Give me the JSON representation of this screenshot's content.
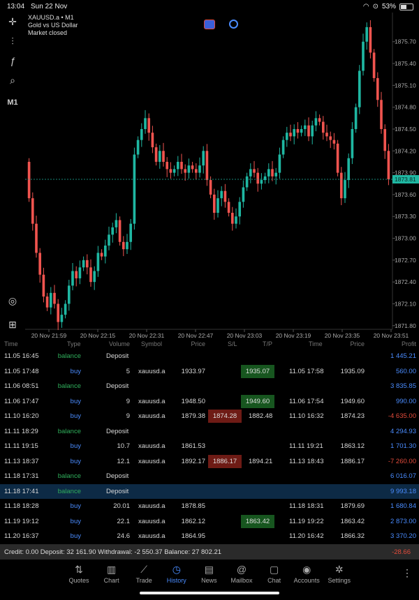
{
  "status": {
    "time": "13:04",
    "date": "Sun 22 Nov",
    "battery": "53%"
  },
  "chart_info": {
    "symbol": "XAUUSD.a • M1",
    "description": "Gold vs US Dollar",
    "market_state": "Market closed"
  },
  "toolbar": {
    "timeframe": "M1"
  },
  "chart_data": {
    "type": "candlestick",
    "ylim": [
      1871.75,
      1876.1
    ],
    "yticks": [
      "1875.70",
      "1875.40",
      "1875.10",
      "1874.80",
      "1874.50",
      "1874.20",
      "1873.90",
      "1873.60",
      "1873.30",
      "1873.00",
      "1872.70",
      "1872.40",
      "1872.10",
      "1871.80"
    ],
    "current_price": "1873.81",
    "xticks": [
      "20 Nov 21:59",
      "20 Nov 22:15",
      "20 Nov 22:31",
      "20 Nov 22:47",
      "20 Nov 23:03",
      "20 Nov 23:19",
      "20 Nov 23:35",
      "20 Nov 23:51"
    ],
    "closes": [
      1873.55,
      1873.2,
      1872.8,
      1872.5,
      1872.2,
      1872.05,
      1872.25,
      1872.1,
      1871.85,
      1871.95,
      1872.1,
      1872.35,
      1872.55,
      1872.45,
      1872.6,
      1872.7,
      1872.6,
      1872.4,
      1872.55,
      1872.8,
      1872.75,
      1872.9,
      1873.05,
      1873.15,
      1873.25,
      1872.95,
      1872.85,
      1872.95,
      1873.2,
      1874.15,
      1874.35,
      1874.5,
      1874.65,
      1874.45,
      1874.25,
      1874.05,
      1874.2,
      1874.05,
      1873.95,
      1873.9,
      1873.95,
      1874.05,
      1873.95,
      1873.9,
      1874.0,
      1873.95,
      1873.9,
      1874.0,
      1874.2,
      1873.8,
      1873.6,
      1873.35,
      1873.55,
      1873.65,
      1873.5,
      1873.35,
      1873.2,
      1873.3,
      1873.5,
      1873.7,
      1873.85,
      1873.95,
      1873.9,
      1873.75,
      1873.8,
      1873.85,
      1873.95,
      1873.85,
      1873.9,
      1874.15,
      1874.35,
      1874.45,
      1874.4,
      1874.5,
      1874.45,
      1874.5,
      1874.55,
      1874.4,
      1874.55,
      1874.65,
      1874.6,
      1874.45,
      1874.4,
      1874.35,
      1874.3,
      1873.9,
      1873.55,
      1873.8,
      1874.1,
      1874.5,
      1874.8,
      1875.3,
      1875.7,
      1875.9,
      1875.55,
      1875.2,
      1874.9,
      1874.5,
      1874.2,
      1873.81
    ]
  },
  "table": {
    "headers": {
      "time": "Time",
      "type": "Type",
      "volume": "Volume",
      "symbol": "Symbol",
      "price": "Price",
      "sl": "S/L",
      "tp": "T/P",
      "close_time": "Time",
      "close_price": "Price",
      "profit": "Profit"
    },
    "rows": [
      {
        "time": "11.05 16:45",
        "type": "balance",
        "volume": "Deposit",
        "symbol": "",
        "price": "",
        "sl": "",
        "tp": "",
        "close_time": "",
        "close_price": "",
        "profit": "1 445.21"
      },
      {
        "time": "11.05 17:48",
        "type": "buy",
        "volume": "5",
        "symbol": "xauusd.a",
        "price": "1933.97",
        "sl": "",
        "tp": "1935.07",
        "close_time": "11.05 17:58",
        "close_price": "1935.09",
        "profit": "560.00"
      },
      {
        "time": "11.06 08:51",
        "type": "balance",
        "volume": "Deposit",
        "symbol": "",
        "price": "",
        "sl": "",
        "tp": "",
        "close_time": "",
        "close_price": "",
        "profit": "3 835.85"
      },
      {
        "time": "11.06 17:47",
        "type": "buy",
        "volume": "9",
        "symbol": "xauusd.a",
        "price": "1948.50",
        "sl": "",
        "tp": "1949.60",
        "close_time": "11.06 17:54",
        "close_price": "1949.60",
        "profit": "990.00"
      },
      {
        "time": "11.10 16:20",
        "type": "buy",
        "volume": "9",
        "symbol": "xauusd.a",
        "price": "1879.38",
        "sl": "1874.28",
        "tp": "1882.48",
        "close_time": "11.10 16:32",
        "close_price": "1874.23",
        "profit": "-4 635.00"
      },
      {
        "time": "11.11 18:29",
        "type": "balance",
        "volume": "Deposit",
        "symbol": "",
        "price": "",
        "sl": "",
        "tp": "",
        "close_time": "",
        "close_price": "",
        "profit": "4 294.93"
      },
      {
        "time": "11.11 19:15",
        "type": "buy",
        "volume": "10.7",
        "symbol": "xauusd.a",
        "price": "1861.53",
        "sl": "",
        "tp": "",
        "close_time": "11.11 19:21",
        "close_price": "1863.12",
        "profit": "1 701.30"
      },
      {
        "time": "11.13 18:37",
        "type": "buy",
        "volume": "12.1",
        "symbol": "xauusd.a",
        "price": "1892.17",
        "sl": "1886.17",
        "tp": "1894.21",
        "close_time": "11.13 18:43",
        "close_price": "1886.17",
        "profit": "-7 260.00"
      },
      {
        "time": "11.18 17:31",
        "type": "balance",
        "volume": "Deposit",
        "symbol": "",
        "price": "",
        "sl": "",
        "tp": "",
        "close_time": "",
        "close_price": "",
        "profit": "6 016.07"
      },
      {
        "time": "11.18 17:41",
        "type": "balance",
        "volume": "Deposit",
        "symbol": "",
        "price": "",
        "sl": "",
        "tp": "",
        "close_time": "",
        "close_price": "",
        "profit": "9 993.18"
      },
      {
        "time": "11.18 18:28",
        "type": "buy",
        "volume": "20.01",
        "symbol": "xauusd.a",
        "price": "1878.85",
        "sl": "",
        "tp": "",
        "close_time": "11.18 18:31",
        "close_price": "1879.69",
        "profit": "1 680.84"
      },
      {
        "time": "11.19 19:12",
        "type": "buy",
        "volume": "22.1",
        "symbol": "xauusd.a",
        "price": "1862.12",
        "sl": "",
        "tp": "1863.42",
        "close_time": "11.19 19:22",
        "close_price": "1863.42",
        "profit": "2 873.00"
      },
      {
        "time": "11.20 16:37",
        "type": "buy",
        "volume": "24.6",
        "symbol": "xauusd.a",
        "price": "1864.95",
        "sl": "",
        "tp": "",
        "close_time": "11.20 16:42",
        "close_price": "1866.32",
        "profit": "3 370.20"
      }
    ]
  },
  "summary": {
    "text": "Credit: 0.00 Deposit: 32 161.90 Withdrawal: -2 550.37 Balance: 27 802.21",
    "value": "-28.66"
  },
  "nav": [
    {
      "label": "Quotes",
      "icon": "quotes-icon"
    },
    {
      "label": "Chart",
      "icon": "chart-icon"
    },
    {
      "label": "Trade",
      "icon": "trade-icon"
    },
    {
      "label": "History",
      "icon": "history-icon"
    },
    {
      "label": "News",
      "icon": "news-icon"
    },
    {
      "label": "Mailbox",
      "icon": "mailbox-icon"
    },
    {
      "label": "Chat",
      "icon": "chat-icon"
    },
    {
      "label": "Accounts",
      "icon": "accounts-icon"
    },
    {
      "label": "Settings",
      "icon": "settings-icon"
    }
  ],
  "colors": {
    "bull": "#1fb7a2",
    "bear": "#f0544f",
    "accent": "#4a8cff"
  }
}
